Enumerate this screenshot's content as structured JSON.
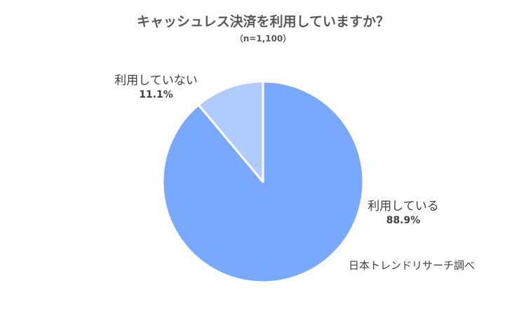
{
  "chart_data": {
    "type": "pie",
    "title": "キャッシュレス決済を利用していますか？",
    "subtitle": "（n=1,100）",
    "slices": [
      {
        "label": "利用している",
        "value": 88.9,
        "value_label": "88.9%",
        "color": "#78A8FF"
      },
      {
        "label": "利用していない",
        "value": 11.1,
        "value_label": "11.1%",
        "color": "#B0CCFF"
      }
    ],
    "start_angle_deg": 0,
    "direction": "clockwise",
    "slice_border_color": "#ffffff"
  },
  "source_note": "日本トレンドリサーチ調べ"
}
